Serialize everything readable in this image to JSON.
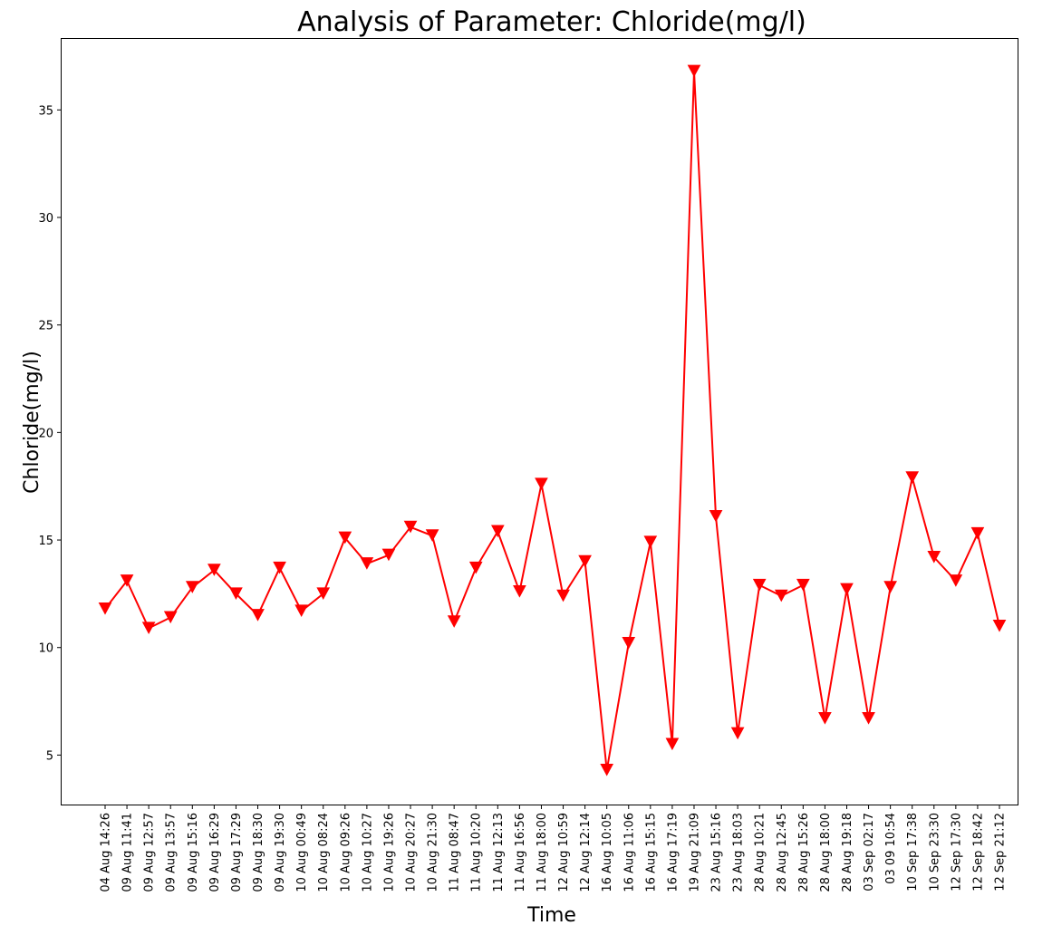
{
  "chart_data": {
    "type": "line",
    "title": "Analysis of Parameter: Chloride(mg/l)",
    "xlabel": "Time",
    "ylabel": "Chloride(mg/l)",
    "ylim": [
      2.7,
      38.3
    ],
    "yticks": [
      5,
      10,
      15,
      20,
      25,
      30,
      35
    ],
    "grid": false,
    "marker": "triangle-down",
    "color": "#ff0000",
    "categories": [
      "04 Aug 14:26",
      "09 Aug 11:41",
      "09 Aug 12:57",
      "09 Aug 13:57",
      "09 Aug 15:16",
      "09 Aug 16:29",
      "09 Aug 17:29",
      "09 Aug 18:30",
      "09 Aug 19:30",
      "10 Aug 00:49",
      "10 Aug 08:24",
      "10 Aug 09:26",
      "10 Aug 10:27",
      "10 Aug 19:26",
      "10 Aug 20:27",
      "10 Aug 21:30",
      "11 Aug 08:47",
      "11 Aug 10:20",
      "11 Aug 12:13",
      "11 Aug 16:56",
      "11 Aug 18:00",
      "12 Aug 10:59",
      "12 Aug 12:14",
      "16 Aug 10:05",
      "16 Aug 11:06",
      "16 Aug 15:15",
      "16 Aug 17:19",
      "19 Aug 21:09",
      "23 Aug 15:16",
      "23 Aug 18:03",
      "28 Aug 10:21",
      "28 Aug 12:45",
      "28 Aug 15:26",
      "28 Aug 18:00",
      "28 Aug 19:18",
      "03 Sep 02:17",
      "03 09 10:54",
      "10 Sep 17:38",
      "10 Sep 23:30",
      "12 Sep 17:30",
      "12 Sep 18:42",
      "12 Sep 21:12"
    ],
    "values": [
      11.8,
      13.1,
      10.9,
      11.4,
      12.8,
      13.6,
      12.5,
      11.5,
      13.7,
      11.7,
      12.5,
      15.1,
      13.9,
      14.3,
      15.6,
      15.2,
      11.2,
      13.7,
      15.4,
      12.6,
      17.6,
      12.4,
      14.0,
      4.3,
      10.2,
      14.9,
      5.5,
      36.8,
      16.1,
      6.0,
      12.9,
      12.4,
      12.9,
      6.7,
      12.7,
      6.7,
      12.8,
      17.9,
      14.2,
      13.1,
      15.3,
      11.0
    ]
  }
}
